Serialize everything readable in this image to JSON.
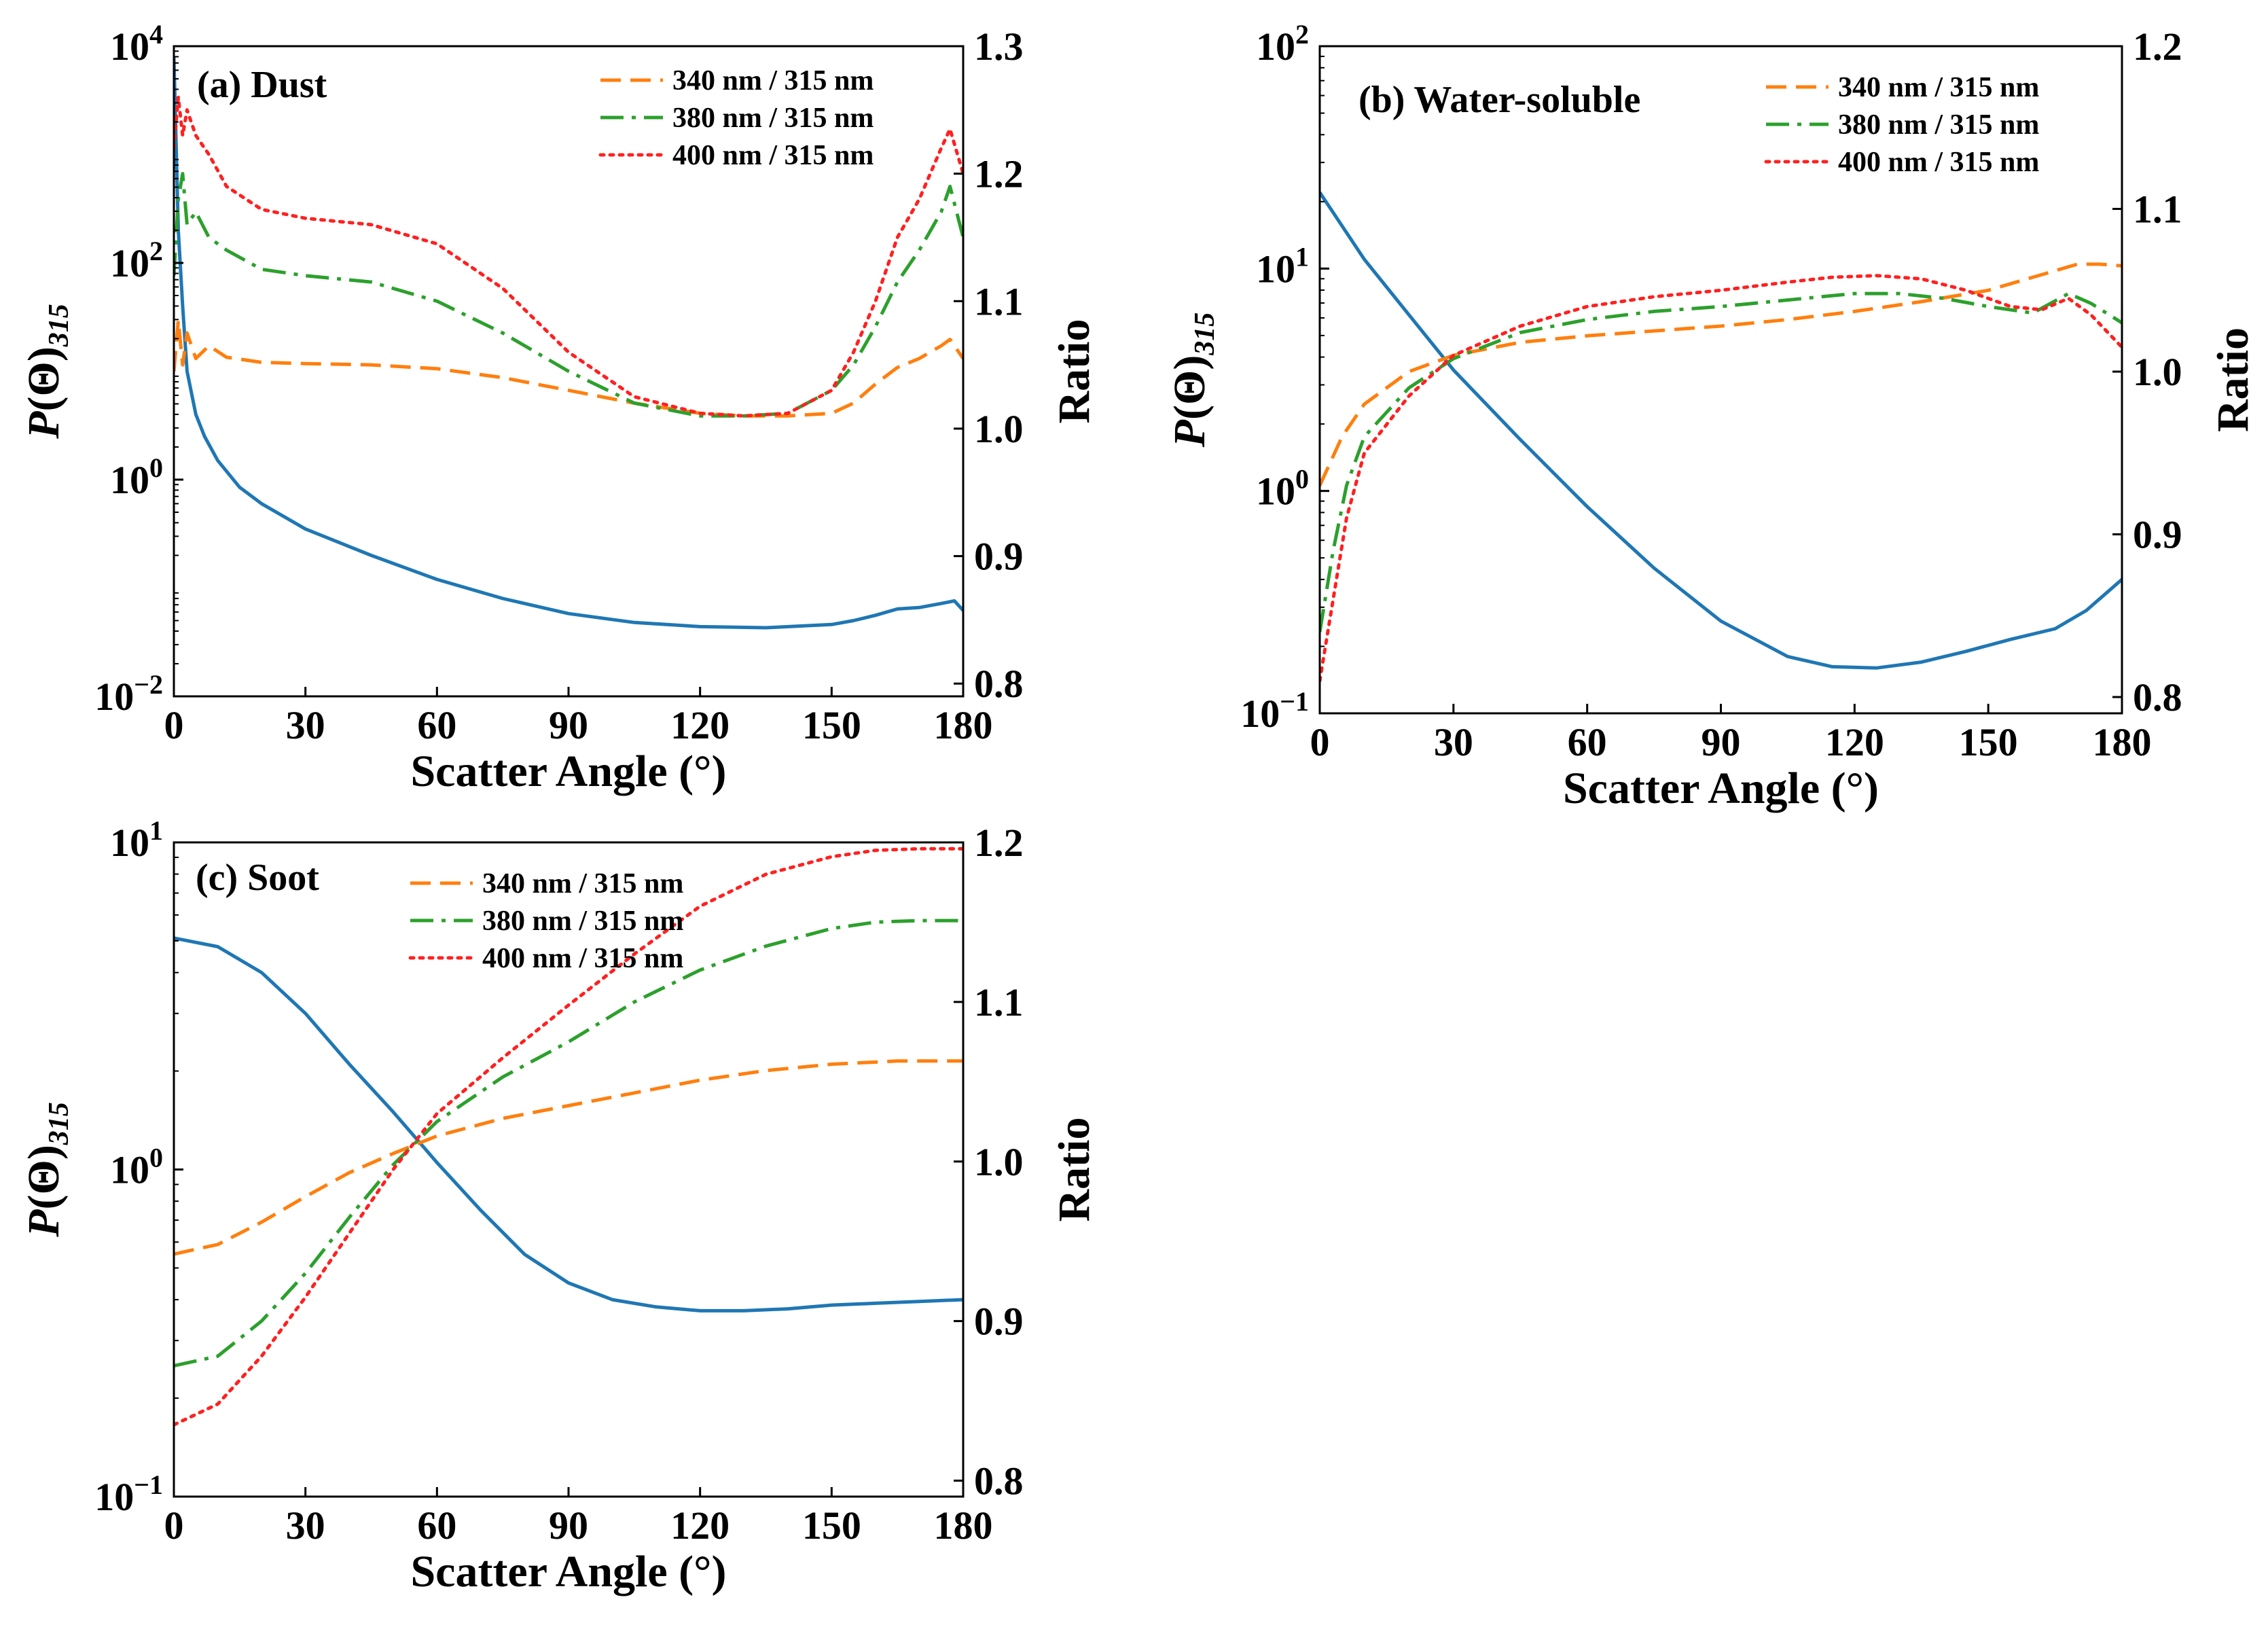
{
  "figure": {
    "colors": {
      "phase_function": "#1f77b4",
      "ratio_340": "#ff7f0e",
      "ratio_380": "#2ca02c",
      "ratio_400": "#ff2020"
    }
  },
  "chart_data": [
    {
      "id": "a",
      "type": "line",
      "title": "(a) Dust",
      "xlabel": "Scatter Angle (°)",
      "ylabel": "P(Θ)315",
      "ylabel_main": "P",
      "ylabel_theta": "(Θ)",
      "ylabel_sub": "315",
      "y2label": "Ratio",
      "xlim": [
        0,
        180
      ],
      "xticks": [
        "0",
        "30",
        "60",
        "90",
        "120",
        "150",
        "180"
      ],
      "yscale": "log",
      "ylim_exp": [
        -2,
        4
      ],
      "yticks": [
        {
          "base": "10",
          "exp": "−2",
          "value_exp": -2
        },
        {
          "base": "10",
          "exp": "0",
          "value_exp": 0
        },
        {
          "base": "10",
          "exp": "2",
          "value_exp": 2
        },
        {
          "base": "10",
          "exp": "4",
          "value_exp": 4
        }
      ],
      "y2lim": [
        0.79,
        1.3
      ],
      "y2ticks": [
        "0.8",
        "0.9",
        "1.0",
        "1.1",
        "1.2",
        "1.3"
      ],
      "legend": [
        "340 nm / 315 nm",
        "380 nm / 315 nm",
        "400 nm / 315 nm"
      ],
      "series": [
        {
          "name": "P(Θ)315",
          "axis": "left",
          "style": "solid",
          "color_key": "phase_function",
          "x": [
            0,
            1,
            2,
            3,
            5,
            7,
            10,
            15,
            20,
            30,
            45,
            60,
            75,
            90,
            105,
            120,
            135,
            150,
            155,
            160,
            165,
            170,
            175,
            178,
            180
          ],
          "y": [
            8000,
            200,
            40,
            10,
            4,
            2.5,
            1.5,
            0.85,
            0.6,
            0.35,
            0.2,
            0.12,
            0.08,
            0.058,
            0.048,
            0.044,
            0.043,
            0.046,
            0.05,
            0.056,
            0.064,
            0.066,
            0.072,
            0.076,
            0.062
          ]
        },
        {
          "name": "340 nm / 315 nm",
          "axis": "right",
          "style": "dashed",
          "color_key": "ratio_340",
          "x": [
            0,
            1,
            2,
            3,
            5,
            8,
            12,
            20,
            30,
            45,
            60,
            75,
            90,
            105,
            120,
            130,
            140,
            150,
            155,
            160,
            165,
            170,
            175,
            177,
            180
          ],
          "y": [
            1.045,
            1.085,
            1.05,
            1.075,
            1.055,
            1.065,
            1.056,
            1.052,
            1.051,
            1.05,
            1.047,
            1.04,
            1.03,
            1.02,
            1.012,
            1.01,
            1.01,
            1.012,
            1.02,
            1.035,
            1.048,
            1.055,
            1.065,
            1.07,
            1.055
          ]
        },
        {
          "name": "380 nm / 315 nm",
          "axis": "right",
          "style": "dashdot",
          "color_key": "ratio_380",
          "x": [
            0,
            1,
            2,
            3,
            5,
            8,
            12,
            20,
            30,
            45,
            60,
            75,
            90,
            105,
            120,
            130,
            140,
            150,
            155,
            160,
            165,
            170,
            175,
            177,
            180
          ],
          "y": [
            1.12,
            1.18,
            1.2,
            1.16,
            1.17,
            1.15,
            1.14,
            1.125,
            1.12,
            1.115,
            1.1,
            1.075,
            1.045,
            1.02,
            1.01,
            1.01,
            1.012,
            1.03,
            1.05,
            1.08,
            1.115,
            1.14,
            1.17,
            1.19,
            1.15
          ]
        },
        {
          "name": "400 nm / 315 nm",
          "axis": "right",
          "style": "dotted",
          "color_key": "ratio_400",
          "x": [
            0,
            1,
            2,
            3,
            5,
            8,
            12,
            20,
            30,
            45,
            60,
            75,
            90,
            105,
            120,
            130,
            140,
            150,
            155,
            160,
            165,
            170,
            175,
            177,
            180
          ],
          "y": [
            1.22,
            1.26,
            1.23,
            1.25,
            1.23,
            1.215,
            1.19,
            1.172,
            1.165,
            1.16,
            1.145,
            1.11,
            1.06,
            1.025,
            1.012,
            1.01,
            1.012,
            1.03,
            1.06,
            1.1,
            1.15,
            1.18,
            1.22,
            1.235,
            1.2
          ]
        }
      ]
    },
    {
      "id": "b",
      "type": "line",
      "title": "(b) Water-soluble",
      "xlabel": "Scatter Angle (°)",
      "ylabel": "P(Θ)315",
      "ylabel_main": "P",
      "ylabel_theta": "(Θ)",
      "ylabel_sub": "315",
      "y2label": "Ratio",
      "xlim": [
        0,
        180
      ],
      "xticks": [
        "0",
        "30",
        "60",
        "90",
        "120",
        "150",
        "180"
      ],
      "yscale": "log",
      "ylim_exp": [
        -1,
        2
      ],
      "yticks": [
        {
          "base": "10",
          "exp": "−1",
          "value_exp": -1
        },
        {
          "base": "10",
          "exp": "0",
          "value_exp": 0
        },
        {
          "base": "10",
          "exp": "1",
          "value_exp": 1
        },
        {
          "base": "10",
          "exp": "2",
          "value_exp": 2
        }
      ],
      "y2lim": [
        0.79,
        1.2
      ],
      "y2ticks": [
        "0.8",
        "0.9",
        "1.0",
        "1.1",
        "1.2"
      ],
      "legend": [
        "340 nm / 315 nm",
        "380 nm / 315 nm",
        "400 nm / 315 nm"
      ],
      "series": [
        {
          "name": "P(Θ)315",
          "axis": "left",
          "style": "solid",
          "color_key": "phase_function",
          "x": [
            0,
            10,
            20,
            30,
            45,
            60,
            75,
            90,
            105,
            115,
            125,
            135,
            145,
            155,
            165,
            172,
            180
          ],
          "y": [
            22,
            11,
            6.2,
            3.5,
            1.7,
            0.85,
            0.45,
            0.26,
            0.18,
            0.162,
            0.16,
            0.17,
            0.19,
            0.215,
            0.24,
            0.29,
            0.4
          ]
        },
        {
          "name": "340 nm / 315 nm",
          "axis": "right",
          "style": "dashed",
          "color_key": "ratio_340",
          "x": [
            0,
            5,
            10,
            20,
            30,
            45,
            60,
            75,
            90,
            105,
            120,
            135,
            150,
            160,
            170,
            175,
            180
          ],
          "y": [
            0.93,
            0.96,
            0.98,
            1.0,
            1.01,
            1.018,
            1.022,
            1.025,
            1.028,
            1.032,
            1.037,
            1.043,
            1.05,
            1.058,
            1.066,
            1.066,
            1.065
          ]
        },
        {
          "name": "380 nm / 315 nm",
          "axis": "right",
          "style": "dashdot",
          "color_key": "ratio_380",
          "x": [
            0,
            3,
            6,
            10,
            20,
            30,
            45,
            60,
            75,
            90,
            105,
            120,
            130,
            140,
            150,
            160,
            168,
            173,
            180
          ],
          "y": [
            0.84,
            0.89,
            0.93,
            0.96,
            0.99,
            1.008,
            1.024,
            1.032,
            1.037,
            1.04,
            1.044,
            1.048,
            1.048,
            1.045,
            1.04,
            1.036,
            1.048,
            1.042,
            1.03
          ]
        },
        {
          "name": "400 nm / 315 nm",
          "axis": "right",
          "style": "dotted",
          "color_key": "ratio_400",
          "x": [
            0,
            3,
            6,
            10,
            20,
            30,
            45,
            60,
            75,
            90,
            105,
            115,
            125,
            135,
            145,
            155,
            162,
            168,
            173,
            180
          ],
          "y": [
            0.81,
            0.86,
            0.91,
            0.95,
            0.985,
            1.01,
            1.028,
            1.04,
            1.046,
            1.05,
            1.055,
            1.058,
            1.059,
            1.057,
            1.05,
            1.04,
            1.038,
            1.045,
            1.035,
            1.015
          ]
        }
      ]
    },
    {
      "id": "c",
      "type": "line",
      "title": "(c) Soot",
      "xlabel": "Scatter Angle (°)",
      "ylabel": "P(Θ)315",
      "ylabel_main": "P",
      "ylabel_theta": "(Θ)",
      "ylabel_sub": "315",
      "y2label": "Ratio",
      "xlim": [
        0,
        180
      ],
      "xticks": [
        "0",
        "30",
        "60",
        "90",
        "120",
        "150",
        "180"
      ],
      "yscale": "log",
      "ylim_exp": [
        -1,
        1
      ],
      "yticks": [
        {
          "base": "10",
          "exp": "−1",
          "value_exp": -1
        },
        {
          "base": "10",
          "exp": "0",
          "value_exp": 0
        },
        {
          "base": "10",
          "exp": "1",
          "value_exp": 1
        }
      ],
      "y2lim": [
        0.79,
        1.2
      ],
      "y2ticks": [
        "0.8",
        "0.9",
        "1.0",
        "1.1",
        "1.2"
      ],
      "legend": [
        "340 nm / 315 nm",
        "380 nm / 315 nm",
        "400 nm / 315 nm"
      ],
      "series": [
        {
          "name": "P(Θ)315",
          "axis": "left",
          "style": "solid",
          "color_key": "phase_function",
          "x": [
            0,
            10,
            20,
            30,
            40,
            50,
            60,
            70,
            80,
            90,
            100,
            110,
            120,
            130,
            140,
            150,
            160,
            170,
            180
          ],
          "y": [
            5.1,
            4.8,
            4.0,
            3.0,
            2.1,
            1.5,
            1.05,
            0.75,
            0.55,
            0.45,
            0.4,
            0.38,
            0.37,
            0.37,
            0.375,
            0.385,
            0.39,
            0.395,
            0.4
          ]
        },
        {
          "name": "340 nm / 315 nm",
          "axis": "right",
          "style": "dashed",
          "color_key": "ratio_340",
          "x": [
            0,
            10,
            20,
            30,
            40,
            50,
            60,
            75,
            90,
            105,
            120,
            135,
            150,
            165,
            180
          ],
          "y": [
            0.942,
            0.948,
            0.962,
            0.978,
            0.993,
            1.005,
            1.016,
            1.027,
            1.035,
            1.043,
            1.051,
            1.057,
            1.061,
            1.063,
            1.063
          ]
        },
        {
          "name": "380 nm / 315 nm",
          "axis": "right",
          "style": "dashdot",
          "color_key": "ratio_380",
          "x": [
            0,
            10,
            20,
            30,
            40,
            50,
            60,
            75,
            90,
            105,
            120,
            135,
            150,
            160,
            170,
            180
          ],
          "y": [
            0.872,
            0.878,
            0.9,
            0.93,
            0.965,
            0.998,
            1.025,
            1.053,
            1.075,
            1.1,
            1.12,
            1.135,
            1.146,
            1.15,
            1.151,
            1.151
          ]
        },
        {
          "name": "400 nm / 315 nm",
          "axis": "right",
          "style": "dotted",
          "color_key": "ratio_400",
          "x": [
            0,
            10,
            20,
            30,
            40,
            50,
            60,
            75,
            90,
            105,
            120,
            135,
            150,
            160,
            170,
            180
          ],
          "y": [
            0.835,
            0.848,
            0.878,
            0.915,
            0.955,
            0.995,
            1.03,
            1.065,
            1.098,
            1.13,
            1.16,
            1.18,
            1.191,
            1.195,
            1.196,
            1.196
          ]
        }
      ]
    }
  ]
}
